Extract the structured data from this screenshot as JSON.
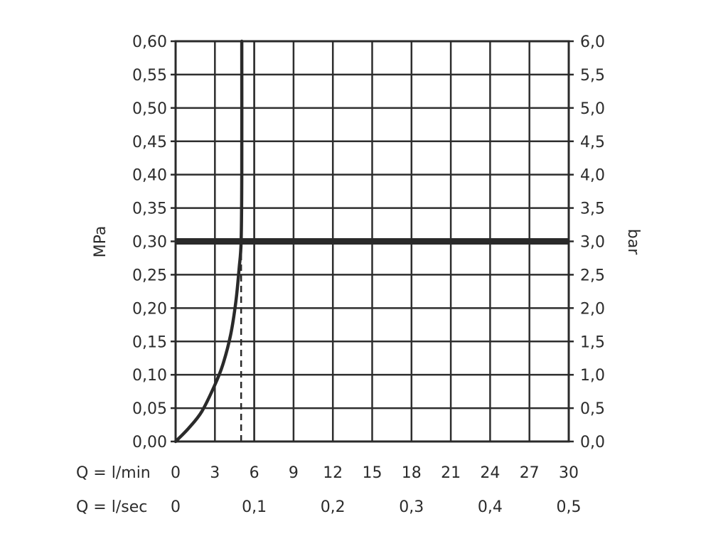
{
  "chart_data": {
    "type": "line",
    "title": "",
    "y_left": {
      "label": "MPa",
      "range": [
        0,
        0.6
      ],
      "ticks": [
        "0,00",
        "0,05",
        "0,10",
        "0,15",
        "0,20",
        "0,25",
        "0,30",
        "0,35",
        "0,40",
        "0,45",
        "0,50",
        "0,55",
        "0,60"
      ]
    },
    "y_right": {
      "label": "bar",
      "range": [
        0,
        6
      ],
      "ticks": [
        "0,0",
        "0,5",
        "1,0",
        "1,5",
        "2,0",
        "2,5",
        "3,0",
        "3,5",
        "4,0",
        "4,5",
        "5,0",
        "5,5",
        "6,0"
      ]
    },
    "x_lmin": {
      "label": "Q = l/min",
      "range": [
        0,
        30
      ],
      "ticks": [
        "0",
        "3",
        "6",
        "9",
        "12",
        "15",
        "18",
        "21",
        "24",
        "27",
        "30"
      ]
    },
    "x_lsec": {
      "label": "Q = l/sec",
      "ticks": [
        {
          "value": 0,
          "text": "0"
        },
        {
          "value": 0.1,
          "text": "0,1"
        },
        {
          "value": 0.2,
          "text": "0,2"
        },
        {
          "value": 0.3,
          "text": "0,3"
        },
        {
          "value": 0.4,
          "text": "0,4"
        },
        {
          "value": 0.5,
          "text": "0,5"
        }
      ]
    },
    "grid": true,
    "series": [
      {
        "x": [
          0,
          1,
          2,
          3,
          3.6,
          4.2,
          4.6,
          4.85,
          5.0,
          5.05,
          5.05
        ],
        "y": [
          0,
          0.02,
          0.045,
          0.085,
          0.115,
          0.16,
          0.21,
          0.26,
          0.3,
          0.4,
          0.6
        ]
      }
    ],
    "reference_lines": [
      {
        "orientation": "horizontal",
        "y": 0.3
      },
      {
        "orientation": "vertical",
        "x": 5.0,
        "y_max": 0.28,
        "style": "dashed"
      }
    ]
  }
}
